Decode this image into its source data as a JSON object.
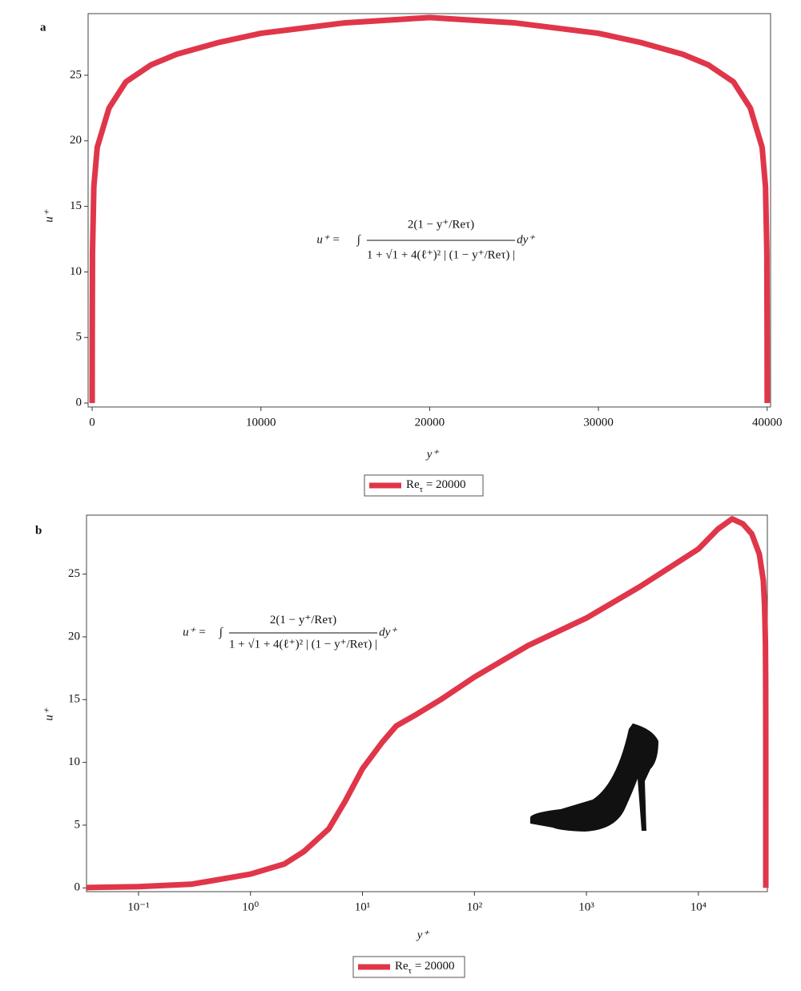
{
  "chart_data": [
    {
      "type": "line",
      "label": "a",
      "xlabel": "y⁺",
      "ylabel": "u⁺",
      "xscale": "linear",
      "xlim": [
        -240,
        40200
      ],
      "ylim": [
        -0.3,
        29.7
      ],
      "xticks": [
        0,
        10000,
        20000,
        30000,
        40000
      ],
      "yticks": [
        0,
        5,
        10,
        15,
        20,
        25
      ],
      "x": [
        0,
        5,
        20,
        100,
        300,
        1000,
        2000,
        3500,
        5000,
        7500,
        10000,
        15000,
        20000,
        25000,
        30000,
        32500,
        35000,
        36500,
        38000,
        39000,
        39700,
        39900,
        39980,
        39995,
        40000
      ],
      "series": [
        {
          "name": "Reτ = 20000",
          "color": "#e0364a",
          "values": [
            0,
            5,
            11.5,
            16.5,
            19.5,
            22.5,
            24.5,
            25.8,
            26.6,
            27.5,
            28.2,
            29.0,
            29.4,
            29.0,
            28.2,
            27.5,
            26.6,
            25.8,
            24.5,
            22.5,
            19.5,
            16.5,
            11.5,
            5,
            0
          ]
        }
      ],
      "annotation": {
        "lhs": "u⁺ =",
        "integral": "∫",
        "numerator": "2(1 − y⁺/Reτ)",
        "denominator": "1 + √1 + 4(ℓ⁺)² | (1 − y⁺/Reτ) |",
        "rhs": "dy⁺"
      }
    },
    {
      "type": "line",
      "label": "b",
      "xlabel": "y⁺",
      "ylabel": "u⁺",
      "xscale": "log",
      "xlim": [
        0.0343,
        41300
      ],
      "ylim": [
        -0.3,
        29.7
      ],
      "xticks": [
        {
          "value": 0.1,
          "label": "10⁻¹"
        },
        {
          "value": 1,
          "label": "10⁰"
        },
        {
          "value": 10,
          "label": "10¹"
        },
        {
          "value": 100,
          "label": "10²"
        },
        {
          "value": 1000,
          "label": "10³"
        },
        {
          "value": 10000,
          "label": "10⁴"
        }
      ],
      "yticks": [
        0,
        5,
        10,
        15,
        20,
        25
      ],
      "x": [
        0.0343,
        0.1,
        0.3,
        1,
        2,
        3,
        5,
        7,
        10,
        15,
        20,
        30,
        50,
        100,
        300,
        1000,
        3000,
        10000,
        15000,
        20000,
        25000,
        30000,
        35000,
        38000,
        39000,
        39700,
        39900,
        39980,
        39995,
        40000
      ],
      "series": [
        {
          "name": "Reτ = 20000",
          "color": "#e0364a",
          "values": [
            0.03,
            0.1,
            0.3,
            1.1,
            1.9,
            2.9,
            4.7,
            6.9,
            9.5,
            11.6,
            12.9,
            13.8,
            15.0,
            16.8,
            19.3,
            21.5,
            24.0,
            27.0,
            28.6,
            29.4,
            29.0,
            28.2,
            26.6,
            24.5,
            22.5,
            19.5,
            16.5,
            11.5,
            5,
            0
          ]
        }
      ],
      "annotation": {
        "lhs": "u⁺ =",
        "integral": "∫",
        "numerator": "2(1 − y⁺/Reτ)",
        "denominator": "1 + √1 + 4(ℓ⁺)² | (1 − y⁺/Reτ) |",
        "rhs": "dy⁺"
      }
    }
  ]
}
